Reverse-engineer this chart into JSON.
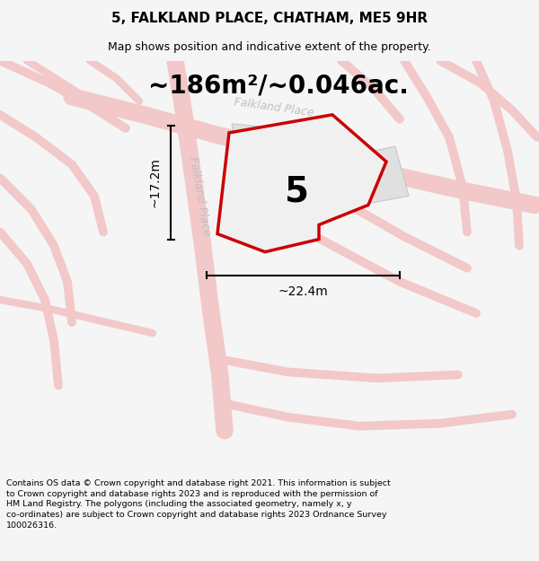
{
  "title": "5, FALKLAND PLACE, CHATHAM, ME5 9HR",
  "subtitle": "Map shows position and indicative extent of the property.",
  "area_text": "~186m²/~0.046ac.",
  "dim_width": "~22.4m",
  "dim_height": "~17.2m",
  "property_number": "5",
  "street_label_top": "Falkland Place",
  "street_label_bottom": "Falkland Place",
  "footer_text": "Contains OS data © Crown copyright and database right 2021. This information is subject to Crown copyright and database rights 2023 and is reproduced with the permission of HM Land Registry. The polygons (including the associated geometry, namely x, y co-ordinates) are subject to Crown copyright and database rights 2023 Ordnance Survey 100026316.",
  "bg_color": "#f5f5f5",
  "map_bg": "#ffffff",
  "road_color": "#f2c8c8",
  "property_fill": "#f0f0f0",
  "property_outline": "#cc0000",
  "gray_block_fill": "#e0e0e0",
  "gray_block_edge": "#c8c8c8",
  "dim_color": "#000000",
  "text_color": "#000000",
  "footer_color": "#000000",
  "title_color": "#000000",
  "street_label_color": "#c0c0c0",
  "title_fontsize": 11,
  "subtitle_fontsize": 9,
  "area_fontsize": 20,
  "number_fontsize": 28,
  "dim_fontsize": 10,
  "street_fontsize": 9,
  "footer_fontsize": 6.8
}
